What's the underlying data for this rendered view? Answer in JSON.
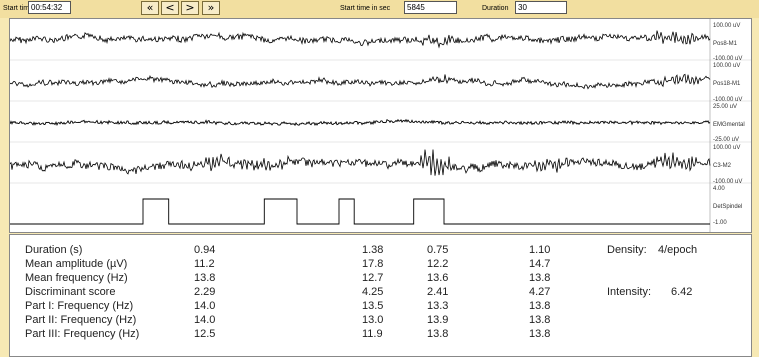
{
  "toolbar": {
    "start_time_label": "Start time",
    "start_time_value": "00:54:32",
    "nav_buttons": [
      "«",
      "<",
      ">",
      "»"
    ],
    "start_sec_label": "Start time in sec",
    "start_sec_value": "5845",
    "duration_label": "Duration",
    "duration_value": "30"
  },
  "channels": [
    {
      "name": "Pos8-M1",
      "scale_top": "100.00 uV",
      "scale_bottom": "-100.00 uV"
    },
    {
      "name": "Pos18-M1",
      "scale_top": "100.00 uV",
      "scale_bottom": "-100.00 uV"
    },
    {
      "name": "EMGmental",
      "scale_top": "25.00 uV",
      "scale_bottom": "-25.00 uV"
    },
    {
      "name": "C3-M2",
      "scale_top": "100.00 uV",
      "scale_bottom": "-100.00 uV"
    },
    {
      "name": "DetSpindel",
      "scale_top": "4.00",
      "scale_bottom": "-1.00"
    }
  ],
  "detections": [
    {
      "start_s": 5.7,
      "end_s": 6.8
    },
    {
      "start_s": 10.9,
      "end_s": 12.3
    },
    {
      "start_s": 14.1,
      "end_s": 14.75
    },
    {
      "start_s": 17.3,
      "end_s": 18.6
    }
  ],
  "results": {
    "rows": [
      {
        "label": "Duration (s)",
        "values": [
          "0.94",
          "1.38",
          "0.75",
          "1.10"
        ]
      },
      {
        "label": "Mean amplitude (µV)",
        "values": [
          "11.2",
          "17.8",
          "12.2",
          "14.7"
        ]
      },
      {
        "label": "Mean frequency (Hz)",
        "values": [
          "13.8",
          "12.7",
          "13.6",
          "13.8"
        ]
      },
      {
        "label": "Discriminant score",
        "values": [
          "2.29",
          "4.25",
          "2.41",
          "4.27"
        ]
      },
      {
        "label": "Part I: Frequency (Hz)",
        "values": [
          "14.0",
          "13.5",
          "13.3",
          "13.8"
        ]
      },
      {
        "label": "Part II: Frequency (Hz)",
        "values": [
          "14.0",
          "13.0",
          "13.9",
          "13.8"
        ]
      },
      {
        "label": "Part III: Frequency (Hz)",
        "values": [
          "12.5",
          "11.9",
          "13.8",
          "13.8"
        ]
      }
    ],
    "density_label": "Density:",
    "density_value": "4/epoch",
    "intensity_label": "Intensity:",
    "intensity_value": "6.42"
  },
  "colors": {
    "background": "#f7e9b4",
    "trace": "#000000",
    "panel": "#ffffff"
  }
}
